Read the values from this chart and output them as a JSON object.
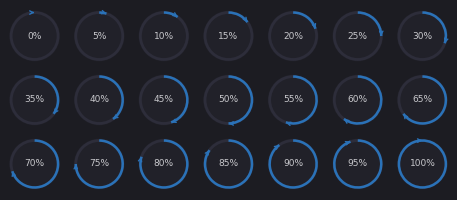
{
  "background_color": "#1c1c22",
  "percentages": [
    0,
    5,
    10,
    15,
    20,
    25,
    30,
    35,
    40,
    45,
    50,
    55,
    60,
    65,
    70,
    75,
    80,
    85,
    90,
    95,
    100
  ],
  "cols": 7,
  "rows": 3,
  "circle_bg_color": "#212129",
  "circle_track_color": "#2d2d3a",
  "circle_progress_color": "#2a72b8",
  "text_color": "#c8c8cc",
  "arrow_color": "#2a72b8",
  "fig_width": 4.57,
  "fig_height": 2.0,
  "dpi": 100,
  "text_fontsize": 6.5,
  "linewidth_track": 2.0,
  "linewidth_progress": 1.8
}
